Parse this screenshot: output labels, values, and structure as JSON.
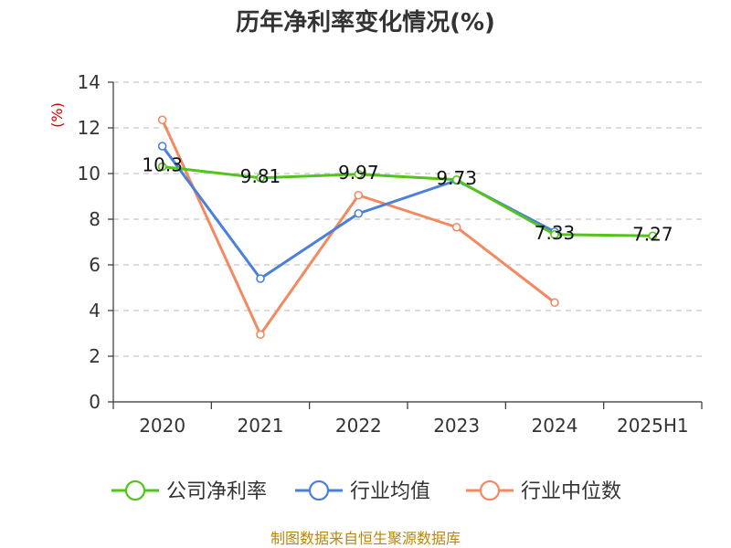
{
  "chart_data": {
    "type": "line",
    "title": "历年净利率变化情况(%)",
    "ylabel": "(%)",
    "categories": [
      "2020",
      "2021",
      "2022",
      "2023",
      "2024",
      "2025H1"
    ],
    "ylim": [
      0,
      14
    ],
    "yticks": [
      0,
      2,
      4,
      6,
      8,
      10,
      12,
      14
    ],
    "grid": true,
    "legend_position": "bottom",
    "series": [
      {
        "name": "公司净利率",
        "color": "#52c41a",
        "values": [
          10.3,
          9.81,
          9.97,
          9.73,
          7.33,
          7.27
        ],
        "labels": [
          "10.3",
          "9.81",
          "9.97",
          "9.73",
          "7.33",
          "7.27"
        ]
      },
      {
        "name": "行业均值",
        "color": "#4a7fdc",
        "values": [
          11.2,
          5.4,
          8.25,
          9.7,
          7.45,
          null
        ]
      },
      {
        "name": "行业中位数",
        "color": "#f4895f",
        "values": [
          12.35,
          2.95,
          9.05,
          7.65,
          4.35,
          null
        ]
      }
    ]
  },
  "source": "制图数据来自恒生聚源数据库"
}
